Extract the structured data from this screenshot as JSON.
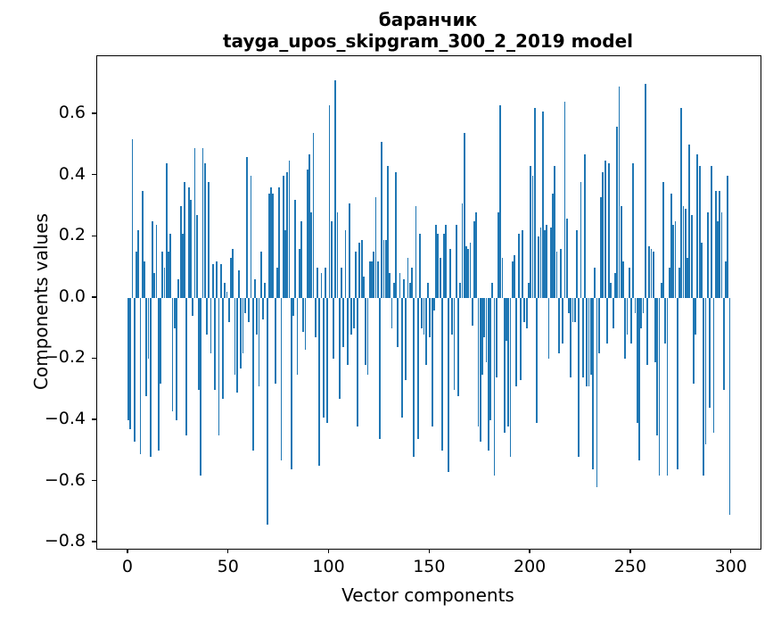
{
  "figure": {
    "title_line1": "баранчик",
    "title_line2": "tayga_upos_skipgram_300_2_2019 model"
  },
  "chart_data": {
    "type": "bar",
    "title": "баранчик\ntayga_upos_skipgram_300_2_2019 model",
    "xlabel": "Vector components",
    "ylabel": "Components values",
    "x_start": 0,
    "n_bars": 300,
    "bar_width_data_units": 0.8,
    "bar_color": "#1f77b4",
    "background_color": "#ffffff",
    "spine_color": "#000000",
    "grid": false,
    "legend_position": "none",
    "xticks": [
      0,
      50,
      100,
      150,
      200,
      250,
      300
    ],
    "yticks": [
      -0.8,
      -0.6,
      -0.4,
      -0.2,
      0.0,
      0.2,
      0.4,
      0.6
    ],
    "xlim": [
      -15.5,
      314.3
    ],
    "ylim": [
      -0.82,
      0.79
    ],
    "values": [
      -0.4,
      -0.43,
      0.52,
      -0.47,
      0.15,
      0.22,
      -0.51,
      0.35,
      0.12,
      -0.32,
      -0.2,
      -0.52,
      0.25,
      0.08,
      0.24,
      -0.5,
      -0.28,
      0.15,
      0.1,
      0.44,
      0.15,
      0.21,
      -0.37,
      -0.1,
      -0.4,
      0.06,
      0.3,
      0.21,
      0.38,
      -0.45,
      0.36,
      0.32,
      -0.06,
      0.49,
      0.27,
      -0.3,
      -0.58,
      0.49,
      0.44,
      -0.12,
      0.38,
      -0.18,
      0.11,
      -0.3,
      0.12,
      -0.45,
      0.11,
      -0.33,
      0.05,
      0.02,
      -0.08,
      0.13,
      0.16,
      -0.25,
      -0.31,
      0.09,
      -0.23,
      -0.18,
      -0.05,
      0.46,
      -0.08,
      0.4,
      -0.5,
      0.06,
      -0.12,
      -0.29,
      0.15,
      -0.07,
      0.05,
      -0.74,
      0.34,
      0.36,
      0.34,
      -0.28,
      0.1,
      0.36,
      -0.53,
      0.4,
      0.22,
      0.41,
      0.45,
      -0.56,
      -0.06,
      0.32,
      -0.25,
      0.16,
      0.25,
      -0.11,
      -0.17,
      0.42,
      0.47,
      0.28,
      0.54,
      -0.13,
      0.1,
      -0.55,
      0.08,
      -0.39,
      0.1,
      -0.41,
      0.63,
      0.25,
      -0.2,
      0.71,
      0.28,
      -0.33,
      0.1,
      -0.16,
      0.22,
      -0.22,
      0.31,
      -0.12,
      -0.1,
      0.15,
      -0.42,
      0.18,
      0.19,
      0.07,
      -0.22,
      -0.25,
      0.12,
      0.12,
      0.15,
      0.33,
      0.12,
      -0.46,
      0.51,
      0.19,
      0.19,
      0.43,
      0.08,
      -0.1,
      0.05,
      0.41,
      -0.16,
      0.08,
      -0.39,
      0.06,
      -0.27,
      0.13,
      0.05,
      0.1,
      -0.52,
      0.3,
      -0.46,
      0.21,
      -0.1,
      -0.12,
      -0.22,
      0.05,
      -0.13,
      -0.42,
      -0.04,
      0.24,
      0.21,
      0.13,
      -0.5,
      0.21,
      0.24,
      -0.57,
      0.16,
      -0.12,
      -0.3,
      0.24,
      -0.32,
      0.05,
      0.31,
      0.54,
      0.17,
      0.16,
      0.18,
      -0.09,
      0.25,
      0.28,
      -0.42,
      -0.47,
      -0.25,
      -0.13,
      -0.21,
      -0.5,
      -0.4,
      0.05,
      -0.58,
      -0.26,
      0.28,
      0.63,
      0.13,
      -0.44,
      -0.14,
      -0.42,
      -0.52,
      0.12,
      0.14,
      -0.29,
      0.21,
      -0.27,
      0.22,
      -0.08,
      -0.1,
      0.05,
      0.43,
      0.4,
      0.62,
      -0.41,
      0.2,
      0.23,
      0.61,
      0.22,
      0.24,
      -0.2,
      0.23,
      0.34,
      0.43,
      0.15,
      -0.18,
      0.16,
      -0.15,
      0.64,
      0.26,
      -0.05,
      -0.26,
      -0.08,
      -0.08,
      0.22,
      -0.52,
      0.38,
      -0.26,
      0.47,
      -0.29,
      -0.29,
      -0.25,
      -0.56,
      0.1,
      -0.62,
      -0.18,
      0.33,
      0.41,
      0.45,
      -0.15,
      0.44,
      0.05,
      -0.1,
      0.08,
      0.56,
      0.69,
      0.3,
      0.12,
      -0.2,
      -0.12,
      0.1,
      -0.15,
      0.44,
      -0.05,
      -0.41,
      -0.53,
      -0.1,
      -0.05,
      0.7,
      -0.22,
      0.17,
      0.16,
      0.15,
      -0.21,
      -0.45,
      -0.58,
      0.05,
      0.38,
      -0.15,
      -0.58,
      0.1,
      0.34,
      0.24,
      0.25,
      -0.56,
      0.1,
      0.62,
      0.3,
      0.29,
      0.13,
      0.5,
      0.27,
      -0.28,
      -0.12,
      0.47,
      0.43,
      0.18,
      -0.58,
      -0.48,
      0.28,
      -0.36,
      0.43,
      -0.44,
      0.35,
      0.25,
      0.35,
      0.28,
      -0.3,
      0.12,
      0.4,
      -0.71
    ]
  }
}
